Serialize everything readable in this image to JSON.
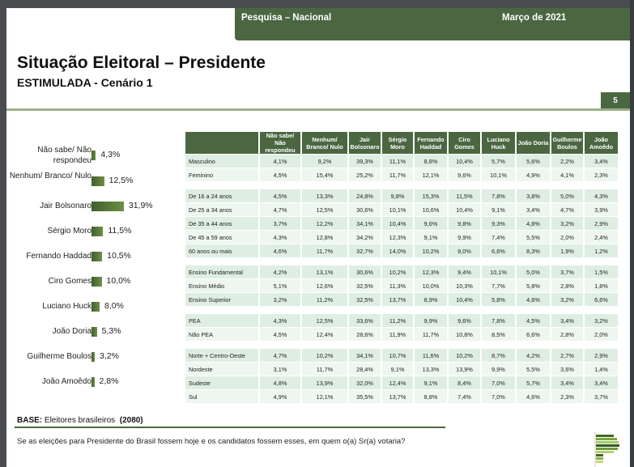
{
  "header": {
    "left": "Pesquisa – Nacional",
    "right": "Março de 2021"
  },
  "title": "Situação Eleitoral – Presidente",
  "subtitle": "ESTIMULADA - Cenário 1",
  "page_number": "5",
  "chart_data": {
    "type": "bar",
    "orientation": "horizontal",
    "categories": [
      "Não sabe/ Não respondeu",
      "Nenhum/ Branco/ Nulo",
      "Jair Bolsonaro",
      "Sérgio Moro",
      "Fernando Haddad",
      "Ciro Gomes",
      "Luciano Huck",
      "João Doria",
      "Guilherme Boulos",
      "João Amoêdo"
    ],
    "values": [
      4.3,
      12.5,
      31.9,
      11.5,
      10.5,
      10.0,
      8.0,
      5.3,
      3.2,
      2.8
    ],
    "labels": [
      "4,3%",
      "12,5%",
      "31,9%",
      "11,5%",
      "10,5%",
      "10,0%",
      "8,0%",
      "5,3%",
      "3,2%",
      "2,8%"
    ]
  },
  "table": {
    "headers": [
      "Não sabe/ Não respondeu",
      "Nenhum/ Branco/ Nulo",
      "Jair Bolsonaro",
      "Sérgio Moro",
      "Fernando Haddad",
      "Ciro Gomes",
      "Luciano Huck",
      "João Doria",
      "Guilherme Boulos",
      "João Amoêdo"
    ],
    "groups": [
      [
        {
          "label": "Masculino",
          "values": [
            "4,1%",
            "9,2%",
            "39,3%",
            "11,1%",
            "8,8%",
            "10,4%",
            "5,7%",
            "5,6%",
            "2,2%",
            "3,4%"
          ]
        },
        {
          "label": "Feminino",
          "values": [
            "4,5%",
            "15,4%",
            "25,2%",
            "11,7%",
            "12,1%",
            "9,6%",
            "10,1%",
            "4,9%",
            "4,1%",
            "2,3%"
          ]
        }
      ],
      [
        {
          "label": "De 16 a 24 anos",
          "values": [
            "4,5%",
            "13,3%",
            "24,8%",
            "9,8%",
            "15,3%",
            "11,5%",
            "7,8%",
            "3,8%",
            "5,0%",
            "4,3%"
          ]
        },
        {
          "label": "De 25 a 34 anos",
          "values": [
            "4,7%",
            "12,5%",
            "30,6%",
            "10,1%",
            "10,6%",
            "10,4%",
            "9,1%",
            "3,4%",
            "4,7%",
            "3,9%"
          ]
        },
        {
          "label": "De 35 a 44 anos",
          "values": [
            "3,7%",
            "12,2%",
            "34,1%",
            "10,4%",
            "9,6%",
            "9,8%",
            "9,3%",
            "4,8%",
            "3,2%",
            "2,9%"
          ]
        },
        {
          "label": "De 45 a 59 anos",
          "values": [
            "4,3%",
            "12,8%",
            "34,2%",
            "12,3%",
            "9,1%",
            "9,9%",
            "7,4%",
            "5,5%",
            "2,0%",
            "2,4%"
          ]
        },
        {
          "label": "60 anos ou mais",
          "values": [
            "4,6%",
            "11,7%",
            "32,7%",
            "14,0%",
            "10,2%",
            "9,0%",
            "6,6%",
            "8,3%",
            "1,9%",
            "1,2%"
          ]
        }
      ],
      [
        {
          "label": "Ensino Fundamental",
          "values": [
            "4,2%",
            "13,1%",
            "30,6%",
            "10,2%",
            "12,3%",
            "9,4%",
            "10,1%",
            "5,0%",
            "3,7%",
            "1,5%"
          ]
        },
        {
          "label": "Ensino Médio",
          "values": [
            "5,1%",
            "12,6%",
            "32,5%",
            "11,3%",
            "10,0%",
            "10,3%",
            "7,7%",
            "5,8%",
            "2,8%",
            "1,8%"
          ]
        },
        {
          "label": "Ensino Superior",
          "values": [
            "3,2%",
            "11,2%",
            "32,5%",
            "13,7%",
            "8,9%",
            "10,4%",
            "5,8%",
            "4,6%",
            "3,2%",
            "6,6%"
          ]
        }
      ],
      [
        {
          "label": "PEA",
          "values": [
            "4,3%",
            "12,5%",
            "33,6%",
            "11,2%",
            "9,9%",
            "9,6%",
            "7,8%",
            "4,5%",
            "3,4%",
            "3,2%"
          ]
        },
        {
          "label": "Não PEA",
          "values": [
            "4,5%",
            "12,4%",
            "28,6%",
            "11,9%",
            "11,7%",
            "10,8%",
            "8,5%",
            "6,6%",
            "2,8%",
            "2,0%"
          ]
        }
      ],
      [
        {
          "label": "Norte + Centro-Oeste",
          "values": [
            "4,7%",
            "10,2%",
            "34,1%",
            "10,7%",
            "11,6%",
            "10,2%",
            "8,7%",
            "4,2%",
            "2,7%",
            "2,9%"
          ]
        },
        {
          "label": "Nordeste",
          "values": [
            "3,1%",
            "11,7%",
            "28,4%",
            "9,1%",
            "13,3%",
            "13,9%",
            "9,9%",
            "5,5%",
            "3,6%",
            "1,4%"
          ]
        },
        {
          "label": "Sudeste",
          "values": [
            "4,8%",
            "13,9%",
            "32,0%",
            "12,4%",
            "9,1%",
            "8,4%",
            "7,0%",
            "5,7%",
            "3,4%",
            "3,4%"
          ]
        },
        {
          "label": "Sul",
          "values": [
            "4,9%",
            "12,1%",
            "35,5%",
            "13,7%",
            "8,8%",
            "7,4%",
            "7,0%",
            "4,6%",
            "2,3%",
            "3,7%"
          ]
        }
      ]
    ]
  },
  "footer": {
    "base_label": "BASE:",
    "base_text": "Eleitores brasileiros",
    "base_n": "(2080)",
    "question": "Se as eleições para Presidente do Brasil fossem hoje e os candidatos fossem esses, em quem o(a) Sr(a) votaria?"
  }
}
